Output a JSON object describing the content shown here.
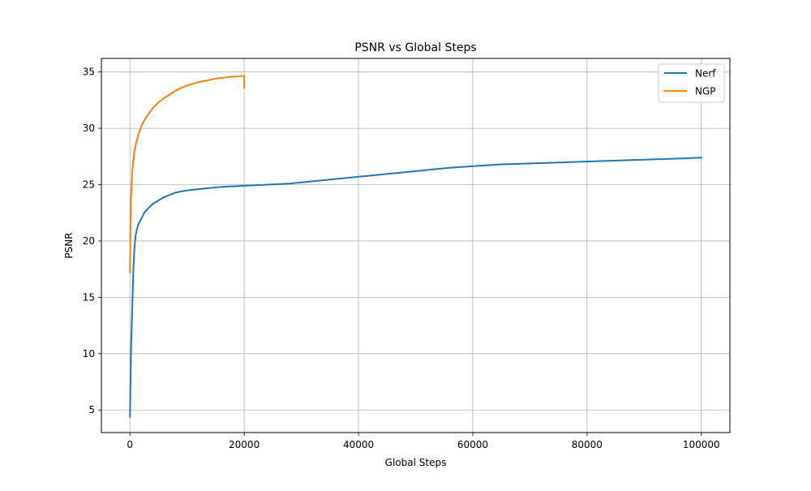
{
  "chart_data": {
    "type": "line",
    "title": "PSNR vs Global Steps",
    "xlabel": "Global Steps",
    "ylabel": "PSNR",
    "xlim": [
      -5000,
      105000
    ],
    "ylim": [
      3,
      36.2
    ],
    "x_ticks": [
      0,
      20000,
      40000,
      60000,
      80000,
      100000
    ],
    "x_tick_labels": [
      "0",
      "20000",
      "40000",
      "60000",
      "80000",
      "100000"
    ],
    "y_ticks": [
      5,
      10,
      15,
      20,
      25,
      30,
      35
    ],
    "y_tick_labels": [
      "5",
      "10",
      "15",
      "20",
      "25",
      "30",
      "35"
    ],
    "grid": true,
    "legend_position": "top-right",
    "series": [
      {
        "name": "Nerf",
        "color": "#1f77b4",
        "x": [
          0,
          200,
          400,
          600,
          800,
          1000,
          1200,
          1500,
          2000,
          2500,
          3000,
          4000,
          5000,
          6000,
          7000,
          8000,
          9000,
          10000,
          12000,
          14000,
          16000,
          18000,
          20000,
          22000,
          24000,
          26000,
          28000,
          30000,
          32000,
          35000,
          38000,
          40000,
          43000,
          46000,
          50000,
          53000,
          56000,
          59000,
          62000,
          65000,
          68000,
          71000,
          74000,
          77000,
          80000,
          83000,
          86000,
          89000,
          92000,
          95000,
          98000,
          100000
        ],
        "values": [
          4.4,
          10.5,
          14.0,
          17.5,
          19.5,
          20.5,
          21.0,
          21.5,
          22.0,
          22.5,
          22.8,
          23.3,
          23.6,
          23.9,
          24.1,
          24.3,
          24.4,
          24.5,
          24.6,
          24.7,
          24.8,
          24.85,
          24.9,
          24.95,
          25.0,
          25.05,
          25.1,
          25.2,
          25.3,
          25.45,
          25.6,
          25.7,
          25.85,
          26.0,
          26.2,
          26.35,
          26.5,
          26.6,
          26.7,
          26.8,
          26.85,
          26.9,
          26.95,
          27.0,
          27.05,
          27.1,
          27.15,
          27.2,
          27.25,
          27.3,
          27.35,
          27.4
        ]
      },
      {
        "name": "NGP",
        "color": "#ff7f0e",
        "x": [
          0,
          100,
          200,
          400,
          600,
          800,
          1000,
          1500,
          2000,
          2500,
          3000,
          4000,
          5000,
          6000,
          7000,
          8000,
          9000,
          10000,
          11000,
          12000,
          13000,
          14000,
          15000,
          16000,
          17000,
          18000,
          19000,
          20000,
          20000
        ],
        "values": [
          17.2,
          21.0,
          24.0,
          26.2,
          27.2,
          28.0,
          28.5,
          29.5,
          30.2,
          30.7,
          31.1,
          31.8,
          32.3,
          32.7,
          33.0,
          33.35,
          33.6,
          33.8,
          33.95,
          34.1,
          34.2,
          34.3,
          34.4,
          34.47,
          34.53,
          34.58,
          34.62,
          34.66,
          33.6
        ]
      }
    ]
  }
}
